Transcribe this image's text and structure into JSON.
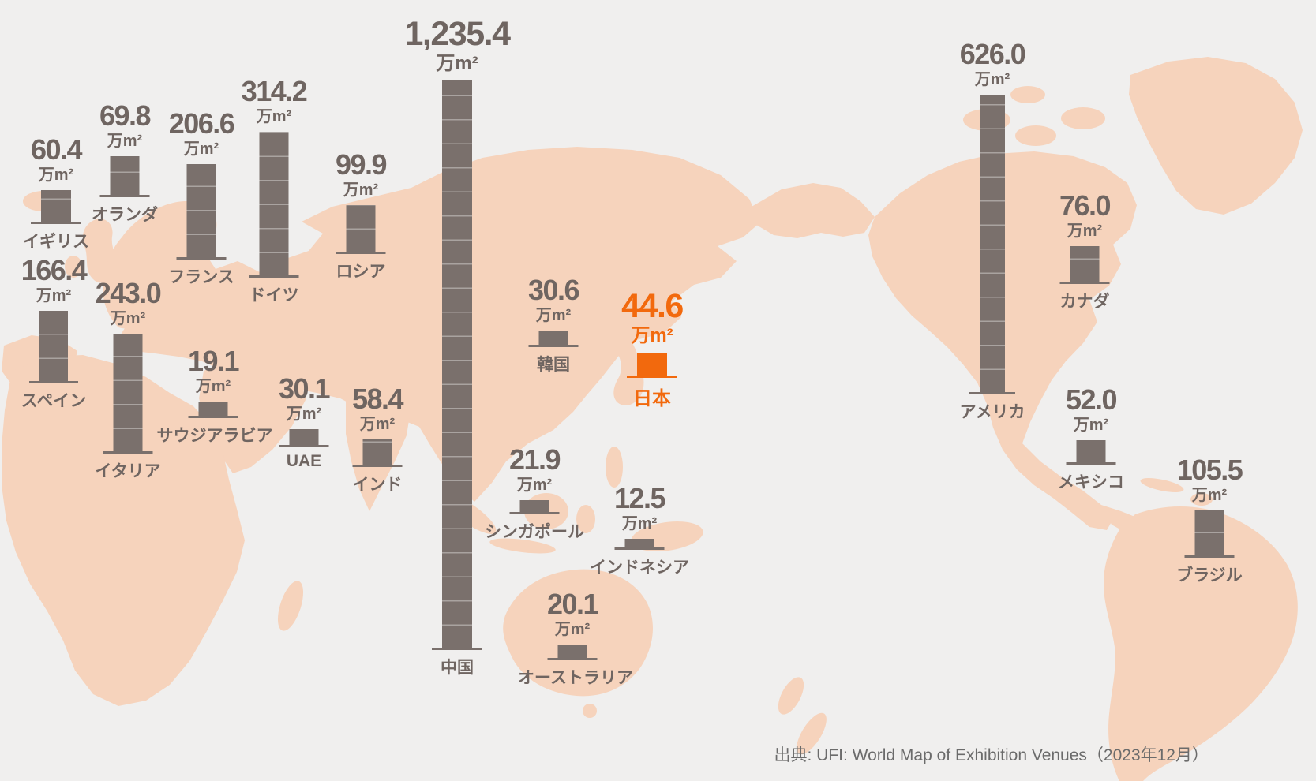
{
  "chart_data": {
    "type": "bar",
    "title": "",
    "unit": "万m²",
    "categories": [
      "イギリス",
      "オランダ",
      "フランス",
      "ドイツ",
      "ロシア",
      "スペイン",
      "イタリア",
      "サウジアラビア",
      "UAE",
      "インド",
      "中国",
      "韓国",
      "日本",
      "シンガポール",
      "インドネシア",
      "オーストラリア",
      "アメリカ",
      "カナダ",
      "メキシコ",
      "ブラジル"
    ],
    "values": [
      60.4,
      69.8,
      206.6,
      314.2,
      99.9,
      166.4,
      243.0,
      19.1,
      30.1,
      58.4,
      1235.4,
      30.6,
      44.6,
      21.9,
      12.5,
      20.1,
      626.0,
      76.0,
      52.0,
      105.5
    ],
    "highlight_category": "日本",
    "legend_position": "none",
    "grid": false,
    "layout": "pictorial bars placed over pacific-centered world map",
    "source": "出典: UFI: World Map of Exhibition Venues（2023年12月）"
  },
  "countries": [
    {
      "id": "uk",
      "name": "イギリス",
      "value": "60.4",
      "unit": "万m²"
    },
    {
      "id": "nl",
      "name": "オランダ",
      "value": "69.8",
      "unit": "万m²"
    },
    {
      "id": "fr",
      "name": "フランス",
      "value": "206.6",
      "unit": "万m²"
    },
    {
      "id": "de",
      "name": "ドイツ",
      "value": "314.2",
      "unit": "万m²"
    },
    {
      "id": "ru",
      "name": "ロシア",
      "value": "99.9",
      "unit": "万m²"
    },
    {
      "id": "es",
      "name": "スペイン",
      "value": "166.4",
      "unit": "万m²"
    },
    {
      "id": "it",
      "name": "イタリア",
      "value": "243.0",
      "unit": "万m²"
    },
    {
      "id": "sa",
      "name": "サウジアラビア",
      "value": "19.1",
      "unit": "万m²"
    },
    {
      "id": "ae",
      "name": "UAE",
      "value": "30.1",
      "unit": "万m²"
    },
    {
      "id": "in",
      "name": "インド",
      "value": "58.4",
      "unit": "万m²"
    },
    {
      "id": "cn",
      "name": "中国",
      "value": "1,235.4",
      "unit": "万m²"
    },
    {
      "id": "kr",
      "name": "韓国",
      "value": "30.6",
      "unit": "万m²"
    },
    {
      "id": "jp",
      "name": "日本",
      "value": "44.6",
      "unit": "万m²"
    },
    {
      "id": "sg",
      "name": "シンガポール",
      "value": "21.9",
      "unit": "万m²"
    },
    {
      "id": "id",
      "name": "インドネシア",
      "value": "12.5",
      "unit": "万m²"
    },
    {
      "id": "au",
      "name": "オーストラリア",
      "value": "20.1",
      "unit": "万m²"
    },
    {
      "id": "us",
      "name": "アメリカ",
      "value": "626.0",
      "unit": "万m²"
    },
    {
      "id": "ca",
      "name": "カナダ",
      "value": "76.0",
      "unit": "万m²"
    },
    {
      "id": "mx",
      "name": "メキシコ",
      "value": "52.0",
      "unit": "万m²"
    },
    {
      "id": "br",
      "name": "ブラジル",
      "value": "105.5",
      "unit": "万m²"
    }
  ],
  "source": {
    "text": "出典: UFI: World Map of Exhibition Venues（2023年12月）"
  },
  "colors": {
    "background": "#f0efee",
    "land": "#f6d3bc",
    "bar": "#7a706c",
    "text": "#6f6561",
    "accent_orange": "#f2690d",
    "source_text": "#6b6b6b"
  }
}
